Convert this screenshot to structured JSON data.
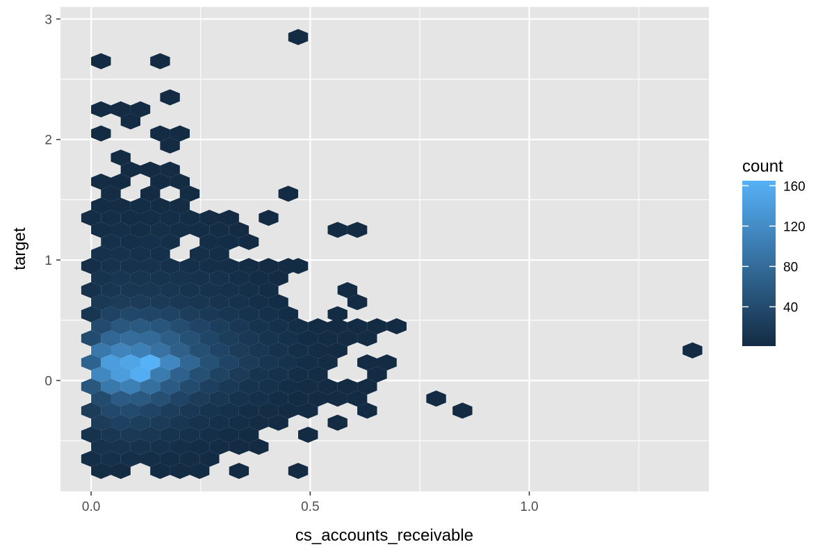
{
  "chart_data": {
    "type": "heatmap",
    "subtype": "hexbin",
    "xlabel": "cs_accounts_receivable",
    "ylabel": "target",
    "xlim": [
      -0.07,
      1.41
    ],
    "ylim": [
      -0.92,
      3.1
    ],
    "x_ticks": [
      0.0,
      0.5,
      1.0
    ],
    "x_tick_labels": [
      "0.0",
      "0.5",
      "1.0"
    ],
    "y_ticks": [
      0,
      1,
      2,
      3
    ],
    "y_tick_labels": [
      "0",
      "1",
      "2",
      "3"
    ],
    "grid": true,
    "panel_background": "#e5e5e5",
    "grid_color": "#ffffff",
    "legend": {
      "title": "count",
      "position": "right",
      "breaks": [
        40,
        80,
        120,
        160
      ],
      "break_labels": [
        "40",
        "80",
        "120",
        "160"
      ],
      "range": [
        1,
        165
      ],
      "low_color": "#132b43",
      "high_color": "#56b1f7"
    },
    "hex_grid": {
      "x0": 0.0225,
      "dx": 0.045,
      "y0": 0.0,
      "dy": 0.1
    },
    "points": [
      [
        0.0225,
        2.65,
        1
      ],
      [
        0.1575,
        2.65,
        1
      ],
      [
        0.4725,
        2.85,
        1
      ],
      [
        0.18,
        2.35,
        1
      ],
      [
        0.0225,
        2.25,
        1
      ],
      [
        0.0675,
        2.25,
        1
      ],
      [
        0.1125,
        2.25,
        1
      ],
      [
        0.09,
        2.15,
        1
      ],
      [
        0.0225,
        2.05,
        1
      ],
      [
        0.1575,
        2.05,
        1
      ],
      [
        0.2025,
        2.05,
        1
      ],
      [
        0.18,
        1.95,
        1
      ],
      [
        0.0675,
        1.85,
        1
      ],
      [
        0.09,
        1.75,
        2
      ],
      [
        0.135,
        1.75,
        2
      ],
      [
        0.18,
        1.75,
        3
      ],
      [
        0.0225,
        1.65,
        3
      ],
      [
        0.0675,
        1.65,
        2
      ],
      [
        0.1575,
        1.65,
        2
      ],
      [
        0.2025,
        1.65,
        2
      ],
      [
        0.045,
        1.55,
        3
      ],
      [
        0.135,
        1.55,
        2
      ],
      [
        0.225,
        1.55,
        2
      ],
      [
        0.45,
        1.55,
        1
      ],
      [
        0.0225,
        1.45,
        4
      ],
      [
        0.0675,
        1.45,
        3
      ],
      [
        0.1125,
        1.45,
        4
      ],
      [
        0.1575,
        1.45,
        3
      ],
      [
        0.2025,
        1.45,
        3
      ],
      [
        0.0,
        1.35,
        4
      ],
      [
        0.045,
        1.35,
        5
      ],
      [
        0.09,
        1.35,
        4
      ],
      [
        0.135,
        1.35,
        5
      ],
      [
        0.18,
        1.35,
        5
      ],
      [
        0.225,
        1.35,
        4
      ],
      [
        0.27,
        1.35,
        3
      ],
      [
        0.315,
        1.35,
        2
      ],
      [
        0.405,
        1.35,
        1
      ],
      [
        0.0225,
        1.25,
        5
      ],
      [
        0.0675,
        1.25,
        6
      ],
      [
        0.1125,
        1.25,
        5
      ],
      [
        0.1575,
        1.25,
        6
      ],
      [
        0.2025,
        1.25,
        5
      ],
      [
        0.2475,
        1.25,
        4
      ],
      [
        0.2925,
        1.25,
        3
      ],
      [
        0.3375,
        1.25,
        2
      ],
      [
        0.5625,
        1.25,
        1
      ],
      [
        0.6075,
        1.25,
        1
      ],
      [
        0.045,
        1.15,
        7
      ],
      [
        0.09,
        1.15,
        6
      ],
      [
        0.135,
        1.15,
        7
      ],
      [
        0.18,
        1.15,
        6
      ],
      [
        0.27,
        1.15,
        5
      ],
      [
        0.315,
        1.15,
        4
      ],
      [
        0.36,
        1.15,
        2
      ],
      [
        0.0225,
        1.05,
        8
      ],
      [
        0.0675,
        1.05,
        9
      ],
      [
        0.1125,
        1.05,
        8
      ],
      [
        0.1575,
        1.05,
        7
      ],
      [
        0.2475,
        1.05,
        6
      ],
      [
        0.2925,
        1.05,
        5
      ],
      [
        0.0,
        0.95,
        6
      ],
      [
        0.045,
        0.95,
        9
      ],
      [
        0.09,
        0.95,
        10
      ],
      [
        0.135,
        0.95,
        9
      ],
      [
        0.18,
        0.95,
        8
      ],
      [
        0.225,
        0.95,
        7
      ],
      [
        0.27,
        0.95,
        6
      ],
      [
        0.315,
        0.95,
        5
      ],
      [
        0.36,
        0.95,
        3
      ],
      [
        0.405,
        0.95,
        2
      ],
      [
        0.45,
        0.95,
        1
      ],
      [
        0.4725,
        0.95,
        1
      ],
      [
        0.0225,
        0.85,
        12
      ],
      [
        0.0675,
        0.85,
        14
      ],
      [
        0.1125,
        0.85,
        13
      ],
      [
        0.1575,
        0.85,
        12
      ],
      [
        0.2025,
        0.85,
        11
      ],
      [
        0.2475,
        0.85,
        9
      ],
      [
        0.2925,
        0.85,
        8
      ],
      [
        0.3375,
        0.85,
        6
      ],
      [
        0.3825,
        0.85,
        4
      ],
      [
        0.4275,
        0.85,
        2
      ],
      [
        0.585,
        0.75,
        1
      ],
      [
        0.0,
        0.75,
        8
      ],
      [
        0.045,
        0.75,
        14
      ],
      [
        0.09,
        0.75,
        16
      ],
      [
        0.135,
        0.75,
        15
      ],
      [
        0.18,
        0.75,
        14
      ],
      [
        0.225,
        0.75,
        12
      ],
      [
        0.27,
        0.75,
        10
      ],
      [
        0.315,
        0.75,
        8
      ],
      [
        0.36,
        0.75,
        6
      ],
      [
        0.405,
        0.75,
        4
      ],
      [
        0.0225,
        0.65,
        18
      ],
      [
        0.0675,
        0.65,
        22
      ],
      [
        0.1125,
        0.65,
        21
      ],
      [
        0.1575,
        0.65,
        19
      ],
      [
        0.2025,
        0.65,
        17
      ],
      [
        0.2475,
        0.65,
        14
      ],
      [
        0.2925,
        0.65,
        11
      ],
      [
        0.3375,
        0.65,
        9
      ],
      [
        0.3825,
        0.65,
        6
      ],
      [
        0.4275,
        0.65,
        4
      ],
      [
        0.6075,
        0.65,
        1
      ],
      [
        0.0,
        0.55,
        14
      ],
      [
        0.045,
        0.55,
        30
      ],
      [
        0.09,
        0.55,
        36
      ],
      [
        0.135,
        0.55,
        34
      ],
      [
        0.18,
        0.55,
        30
      ],
      [
        0.225,
        0.55,
        24
      ],
      [
        0.27,
        0.55,
        18
      ],
      [
        0.315,
        0.55,
        14
      ],
      [
        0.36,
        0.55,
        10
      ],
      [
        0.405,
        0.55,
        7
      ],
      [
        0.45,
        0.55,
        4
      ],
      [
        0.5625,
        0.55,
        1
      ],
      [
        0.0225,
        0.45,
        40
      ],
      [
        0.0675,
        0.45,
        55
      ],
      [
        0.1125,
        0.45,
        58
      ],
      [
        0.1575,
        0.45,
        52
      ],
      [
        0.2025,
        0.45,
        42
      ],
      [
        0.2475,
        0.45,
        32
      ],
      [
        0.2925,
        0.45,
        24
      ],
      [
        0.3375,
        0.45,
        17
      ],
      [
        0.3825,
        0.45,
        12
      ],
      [
        0.4275,
        0.45,
        8
      ],
      [
        0.4725,
        0.45,
        5
      ],
      [
        0.5175,
        0.45,
        2
      ],
      [
        0.5625,
        0.45,
        2
      ],
      [
        0.6075,
        0.45,
        1
      ],
      [
        0.6525,
        0.45,
        1
      ],
      [
        0.6975,
        0.45,
        1
      ],
      [
        0.0,
        0.35,
        40
      ],
      [
        0.045,
        0.35,
        75
      ],
      [
        0.09,
        0.35,
        82
      ],
      [
        0.135,
        0.35,
        78
      ],
      [
        0.18,
        0.35,
        64
      ],
      [
        0.225,
        0.35,
        48
      ],
      [
        0.27,
        0.35,
        34
      ],
      [
        0.315,
        0.35,
        24
      ],
      [
        0.36,
        0.35,
        17
      ],
      [
        0.405,
        0.35,
        12
      ],
      [
        0.45,
        0.35,
        8
      ],
      [
        0.495,
        0.35,
        4
      ],
      [
        0.54,
        0.35,
        3
      ],
      [
        0.585,
        0.35,
        2
      ],
      [
        0.63,
        0.35,
        1
      ],
      [
        0.0225,
        0.25,
        95
      ],
      [
        0.0675,
        0.25,
        110
      ],
      [
        0.1125,
        0.25,
        105
      ],
      [
        0.1575,
        0.25,
        88
      ],
      [
        0.2025,
        0.25,
        66
      ],
      [
        0.2475,
        0.25,
        46
      ],
      [
        0.2925,
        0.25,
        32
      ],
      [
        0.3375,
        0.25,
        22
      ],
      [
        0.3825,
        0.25,
        15
      ],
      [
        0.4275,
        0.25,
        10
      ],
      [
        0.4725,
        0.25,
        6
      ],
      [
        0.5175,
        0.25,
        3
      ],
      [
        0.5625,
        0.25,
        2
      ],
      [
        0.0,
        0.15,
        70
      ],
      [
        0.045,
        0.15,
        140
      ],
      [
        0.09,
        0.15,
        150
      ],
      [
        0.135,
        0.15,
        165
      ],
      [
        0.18,
        0.15,
        115
      ],
      [
        0.225,
        0.15,
        75
      ],
      [
        0.27,
        0.15,
        48
      ],
      [
        0.315,
        0.15,
        32
      ],
      [
        0.36,
        0.15,
        21
      ],
      [
        0.405,
        0.15,
        14
      ],
      [
        0.45,
        0.15,
        9
      ],
      [
        0.495,
        0.15,
        5
      ],
      [
        0.54,
        0.15,
        3
      ],
      [
        0.63,
        0.15,
        1
      ],
      [
        0.675,
        0.15,
        1
      ],
      [
        1.3725,
        0.25,
        1
      ],
      [
        0.0225,
        0.05,
        115
      ],
      [
        0.0675,
        0.05,
        140
      ],
      [
        0.1125,
        0.05,
        160
      ],
      [
        0.1575,
        0.05,
        100
      ],
      [
        0.2025,
        0.05,
        68
      ],
      [
        0.2475,
        0.05,
        45
      ],
      [
        0.2925,
        0.05,
        30
      ],
      [
        0.3375,
        0.05,
        20
      ],
      [
        0.3825,
        0.05,
        13
      ],
      [
        0.4275,
        0.05,
        8
      ],
      [
        0.4725,
        0.05,
        5
      ],
      [
        0.5175,
        0.05,
        3
      ],
      [
        0.6525,
        0.05,
        1
      ],
      [
        0.0,
        -0.05,
        55
      ],
      [
        0.045,
        -0.05,
        95
      ],
      [
        0.09,
        -0.05,
        105
      ],
      [
        0.135,
        -0.05,
        85
      ],
      [
        0.18,
        -0.05,
        60
      ],
      [
        0.225,
        -0.05,
        40
      ],
      [
        0.27,
        -0.05,
        27
      ],
      [
        0.315,
        -0.05,
        18
      ],
      [
        0.36,
        -0.05,
        12
      ],
      [
        0.405,
        -0.05,
        8
      ],
      [
        0.45,
        -0.05,
        5
      ],
      [
        0.495,
        -0.05,
        3
      ],
      [
        0.54,
        -0.05,
        2
      ],
      [
        0.585,
        -0.05,
        1
      ],
      [
        0.63,
        -0.05,
        1
      ],
      [
        0.7875,
        -0.15,
        1
      ],
      [
        0.0225,
        -0.15,
        40
      ],
      [
        0.0675,
        -0.15,
        60
      ],
      [
        0.1125,
        -0.15,
        58
      ],
      [
        0.1575,
        -0.15,
        45
      ],
      [
        0.2025,
        -0.15,
        32
      ],
      [
        0.2475,
        -0.15,
        22
      ],
      [
        0.2925,
        -0.15,
        15
      ],
      [
        0.3375,
        -0.15,
        10
      ],
      [
        0.3825,
        -0.15,
        7
      ],
      [
        0.4275,
        -0.15,
        4
      ],
      [
        0.4725,
        -0.15,
        2
      ],
      [
        0.5175,
        -0.15,
        1
      ],
      [
        0.5625,
        -0.15,
        1
      ],
      [
        0.6075,
        -0.15,
        1
      ],
      [
        0.0,
        -0.25,
        22
      ],
      [
        0.045,
        -0.25,
        38
      ],
      [
        0.09,
        -0.25,
        40
      ],
      [
        0.135,
        -0.25,
        32
      ],
      [
        0.18,
        -0.25,
        24
      ],
      [
        0.225,
        -0.25,
        17
      ],
      [
        0.27,
        -0.25,
        12
      ],
      [
        0.315,
        -0.25,
        8
      ],
      [
        0.36,
        -0.25,
        5
      ],
      [
        0.405,
        -0.25,
        3
      ],
      [
        0.45,
        -0.25,
        2
      ],
      [
        0.495,
        -0.25,
        1
      ],
      [
        0.63,
        -0.25,
        1
      ],
      [
        0.8475,
        -0.25,
        1
      ],
      [
        0.0225,
        -0.35,
        22
      ],
      [
        0.0675,
        -0.35,
        28
      ],
      [
        0.1125,
        -0.35,
        26
      ],
      [
        0.1575,
        -0.35,
        20
      ],
      [
        0.2025,
        -0.35,
        15
      ],
      [
        0.2475,
        -0.35,
        10
      ],
      [
        0.2925,
        -0.35,
        7
      ],
      [
        0.3375,
        -0.35,
        5
      ],
      [
        0.3825,
        -0.35,
        3
      ],
      [
        0.4275,
        -0.35,
        2
      ],
      [
        0.5625,
        -0.35,
        1
      ],
      [
        0.0,
        -0.45,
        10
      ],
      [
        0.045,
        -0.45,
        16
      ],
      [
        0.09,
        -0.45,
        18
      ],
      [
        0.135,
        -0.45,
        15
      ],
      [
        0.18,
        -0.45,
        11
      ],
      [
        0.225,
        -0.45,
        8
      ],
      [
        0.27,
        -0.45,
        6
      ],
      [
        0.315,
        -0.45,
        4
      ],
      [
        0.36,
        -0.45,
        2
      ],
      [
        0.495,
        -0.45,
        1
      ],
      [
        0.0225,
        -0.55,
        9
      ],
      [
        0.0675,
        -0.55,
        11
      ],
      [
        0.1125,
        -0.55,
        10
      ],
      [
        0.1575,
        -0.55,
        8
      ],
      [
        0.2025,
        -0.55,
        6
      ],
      [
        0.2475,
        -0.55,
        4
      ],
      [
        0.2925,
        -0.55,
        3
      ],
      [
        0.3375,
        -0.55,
        2
      ],
      [
        0.3825,
        -0.55,
        1
      ],
      [
        0.0,
        -0.65,
        5
      ],
      [
        0.045,
        -0.65,
        7
      ],
      [
        0.09,
        -0.65,
        6
      ],
      [
        0.135,
        -0.65,
        5
      ],
      [
        0.18,
        -0.65,
        4
      ],
      [
        0.225,
        -0.65,
        3
      ],
      [
        0.27,
        -0.65,
        2
      ],
      [
        0.0225,
        -0.75,
        3
      ],
      [
        0.0675,
        -0.75,
        2
      ],
      [
        0.1575,
        -0.75,
        2
      ],
      [
        0.2025,
        -0.75,
        2
      ],
      [
        0.2475,
        -0.75,
        1
      ],
      [
        0.3375,
        -0.75,
        1
      ],
      [
        0.4725,
        -0.75,
        1
      ]
    ]
  }
}
